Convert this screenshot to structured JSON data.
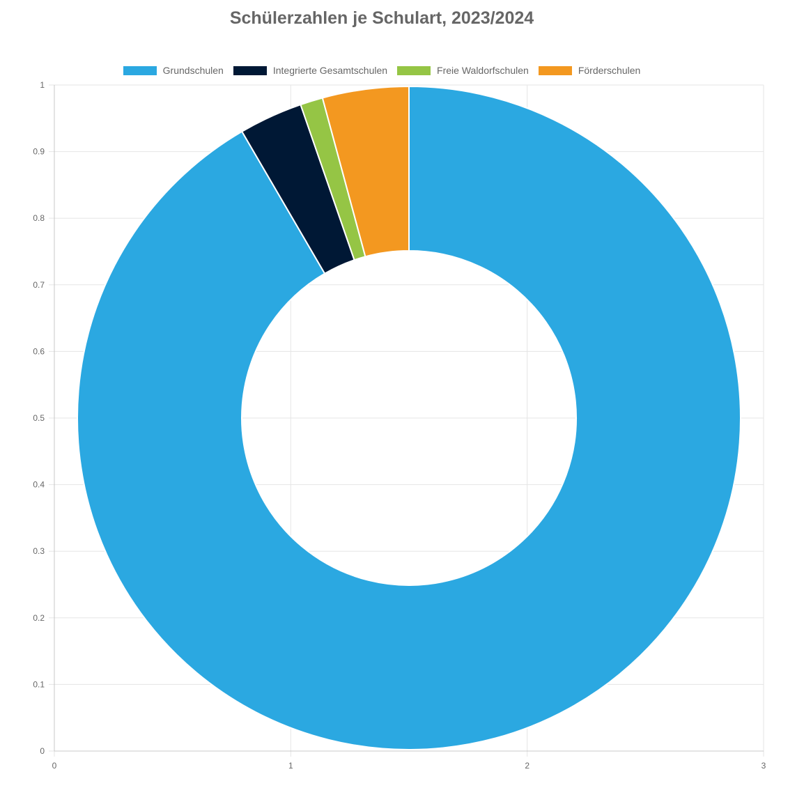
{
  "chart_data": {
    "type": "doughnut",
    "title": "Schülerzahlen je Schulart, 2023/2024",
    "categories": [
      "Grundschulen",
      "Integrierte Gesamtschulen",
      "Freie Waldorfschulen",
      "Förderschulen"
    ],
    "values": [
      91.6,
      3.1,
      1.1,
      4.2
    ],
    "colors": [
      "#2ba8e1",
      "#001835",
      "#95c545",
      "#f39820"
    ],
    "legend_position": "top",
    "grid": true,
    "x_axis": {
      "min": 0,
      "max": 3,
      "ticks": [
        "0",
        "1",
        "2",
        "3"
      ]
    },
    "y_axis": {
      "min": 0,
      "max": 1,
      "ticks": [
        "0",
        "0.1",
        "0.2",
        "0.3",
        "0.4",
        "0.5",
        "0.6",
        "0.7",
        "0.8",
        "0.9",
        "1"
      ]
    }
  }
}
